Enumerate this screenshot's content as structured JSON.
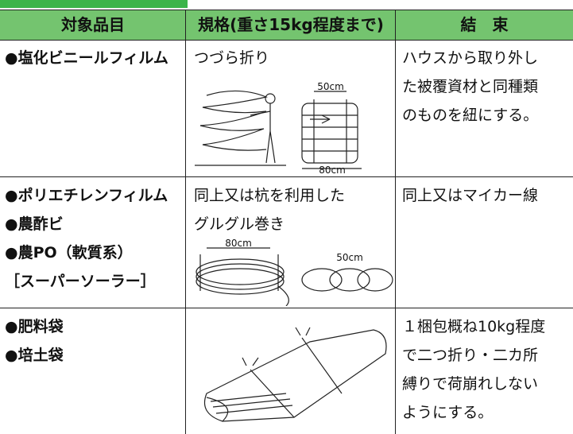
{
  "header": {
    "item": "対象品目",
    "spec": "規格(重さ15kg程度まで)",
    "binding": "結　束"
  },
  "rows": [
    {
      "items": [
        "●塩化ビニールフィルム"
      ],
      "spec": [
        "つづら折り"
      ],
      "dims": [
        "50cm",
        "80cm"
      ],
      "binding": [
        "ハウスから取り外し",
        "た被覆資材と同種類",
        "のものを紐にする。"
      ]
    },
    {
      "items": [
        "●ポリエチレンフィルム",
        "●農酢ビ",
        "●農PO（軟質系）",
        "［スーパーソーラー］"
      ],
      "spec": [
        "同上又は杭を利用した",
        "グルグル巻き"
      ],
      "dims": [
        "80cm",
        "50cm"
      ],
      "binding": [
        "同上又はマイカー線"
      ]
    },
    {
      "items": [
        "●肥料袋",
        "●培土袋"
      ],
      "spec": [],
      "dims": [],
      "binding": [
        "１梱包概ね10kg程度",
        "で二つ折り・二カ所",
        "縛りで荷崩れしない",
        "ようにする。"
      ]
    }
  ]
}
